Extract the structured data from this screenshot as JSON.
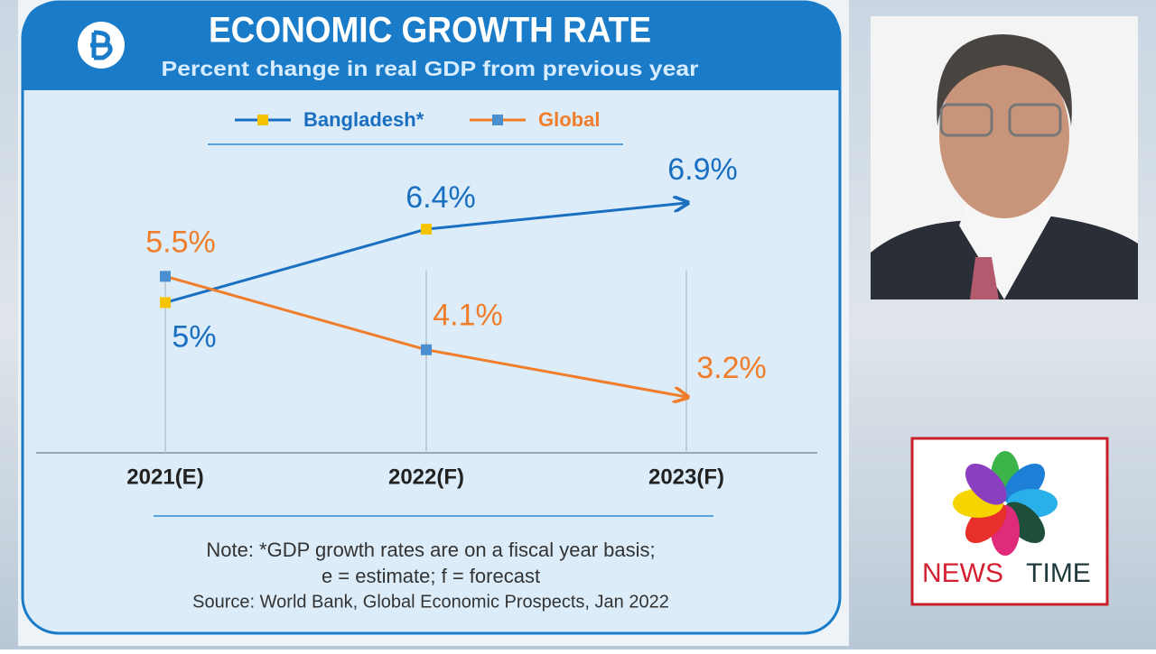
{
  "chart_data": {
    "type": "line",
    "title": "ECONOMIC GROWTH RATE",
    "subtitle": "Percent change in real GDP from previous year",
    "categories": [
      "2021(E)",
      "2022(F)",
      "2023(F)"
    ],
    "series": [
      {
        "name": "Bangladesh*",
        "color": "#1a6fc0",
        "marker_color": "#f5c400",
        "values": [
          5,
          6.4,
          6.9
        ],
        "value_labels": [
          "5%",
          "6.4%",
          "6.9%"
        ]
      },
      {
        "name": "Global",
        "color": "#f07d2a",
        "marker_color": "#4a8fd0",
        "values": [
          5.5,
          4.1,
          3.2
        ],
        "value_labels": [
          "5.5%",
          "4.1%",
          "3.2%"
        ]
      }
    ],
    "note": [
      "Note: *GDP growth rates are on a fiscal year basis;",
      "e = estimate; f = forecast"
    ],
    "source": "Source: World Bank, Global Economic Prospects, Jan 2022"
  },
  "logo": {
    "words": [
      "NEWS",
      "TIME"
    ]
  }
}
